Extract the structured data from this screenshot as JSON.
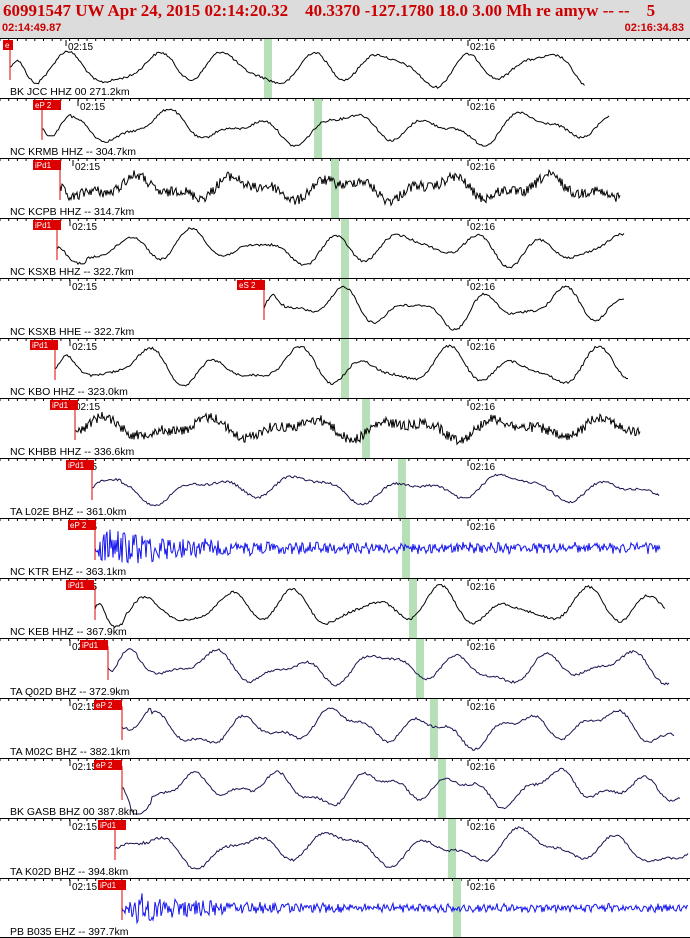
{
  "header": {
    "title": "60991547 UW Apr 24, 2015 02:14:20.32    40.3370 -127.1780 18.0 3.00 Mh re amyw -- --    5",
    "start_time": "02:14:49.87",
    "end_time": "02:16:34.83"
  },
  "colors": {
    "header_bg": "#dcdcdc",
    "header_text": "#cc0000",
    "pick": "#dd0000",
    "marker": "#b8e0b8",
    "trace_black": "#000000",
    "trace_navy": "#1a1450",
    "trace_blue": "#1515ee"
  },
  "tick_labels": [
    "02:15",
    "02:16"
  ],
  "traces": [
    {
      "label": "BK JCC HHZ 00 271.2km",
      "pick": "e",
      "color": "#000000",
      "style": "wave",
      "marker": 268
    },
    {
      "label": "NC KRMB HHZ -- 304.7km",
      "pick": "eP 2",
      "color": "#000000",
      "style": "wave",
      "marker": 318
    },
    {
      "label": "NC KCPB HHZ -- 314.7km",
      "pick": "iPd1",
      "color": "#000000",
      "style": "noisy",
      "marker": 335
    },
    {
      "label": "NC KSXB HHZ -- 322.7km",
      "pick": "iPd1",
      "color": "#000000",
      "style": "wave",
      "marker": 345
    },
    {
      "label": "NC KSXB HHE -- 322.7km",
      "pick": "eS 2",
      "color": "#000000",
      "style": "wave",
      "marker": 345
    },
    {
      "label": "NC KBO HHZ -- 323.0km",
      "pick": "iPd1",
      "color": "#000000",
      "style": "wave",
      "marker": 345
    },
    {
      "label": "NC KHBB HHZ -- 336.6km",
      "pick": "iPd1",
      "color": "#000000",
      "style": "noisy",
      "marker": 366
    },
    {
      "label": "TA L02E BHZ -- 361.0km",
      "pick": "iPd1",
      "color": "#1a1450",
      "style": "wave",
      "marker": 402
    },
    {
      "label": "NC KTR EHZ -- 363.1km",
      "pick": "eP 2",
      "color": "#1515ee",
      "style": "burst",
      "marker": 406
    },
    {
      "label": "NC KEB HHZ -- 367.9km",
      "pick": "iPd1",
      "color": "#000000",
      "style": "wave",
      "marker": 413
    },
    {
      "label": "TA Q02D BHZ -- 372.9km",
      "pick": "iPd1",
      "color": "#1a1450",
      "style": "wave",
      "marker": 420
    },
    {
      "label": "TA M02C BHZ -- 382.1km",
      "pick": "eP 2",
      "color": "#1a1450",
      "style": "wave",
      "marker": 434
    },
    {
      "label": "BK GASB BHZ 00 387.8km",
      "pick": "eP 2",
      "color": "#1a1450",
      "style": "wave",
      "marker": 442
    },
    {
      "label": "TA K02D BHZ -- 394.8km",
      "pick": "iPd1",
      "color": "#1a1450",
      "style": "wave",
      "marker": 452
    },
    {
      "label": "PB B035 EHZ -- 397.7km",
      "pick": "iPd1",
      "color": "#1515ee",
      "style": "burst",
      "marker": 457
    }
  ]
}
